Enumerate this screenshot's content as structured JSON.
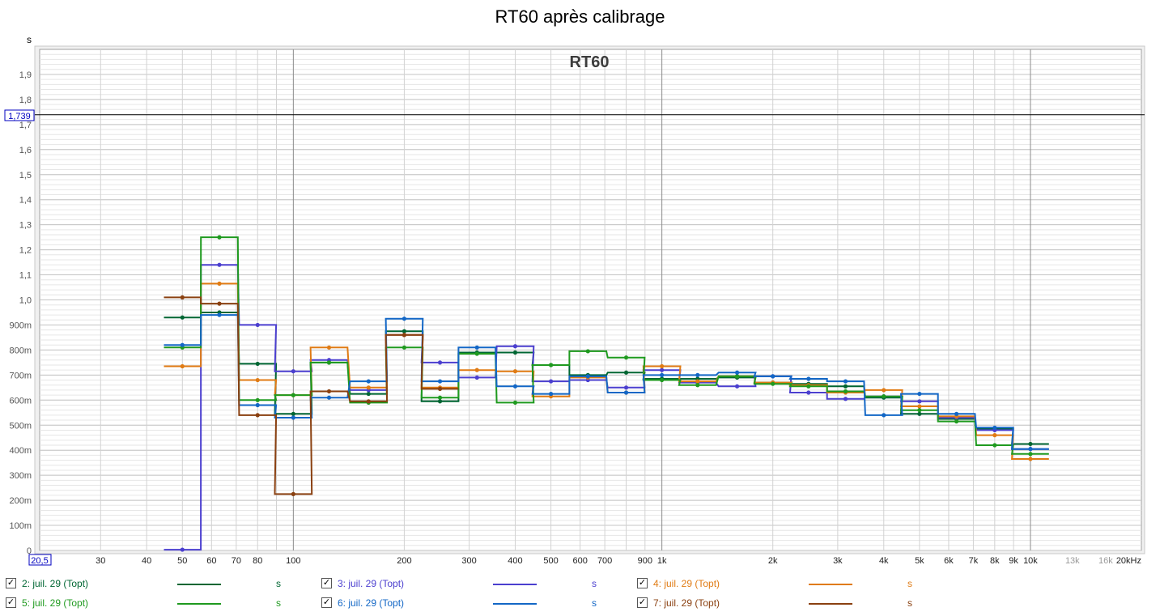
{
  "window": {
    "title": "RT60 après calibrage"
  },
  "chart_data": {
    "type": "line",
    "title": "RT60",
    "ylabel": "s",
    "xlabel": "",
    "x_scale": "log",
    "xlim": [
      20.5,
      20000
    ],
    "ylim": [
      0,
      2.0
    ],
    "grid": true,
    "cursor": {
      "y_value": 1.739,
      "y_label": "1,739",
      "x_label": "20,5"
    },
    "y_ticks": [
      {
        "v": 0,
        "label": "0"
      },
      {
        "v": 0.1,
        "label": "100m"
      },
      {
        "v": 0.2,
        "label": "200m"
      },
      {
        "v": 0.3,
        "label": "300m"
      },
      {
        "v": 0.4,
        "label": "400m"
      },
      {
        "v": 0.5,
        "label": "500m"
      },
      {
        "v": 0.6,
        "label": "600m"
      },
      {
        "v": 0.7,
        "label": "700m"
      },
      {
        "v": 0.8,
        "label": "800m"
      },
      {
        "v": 0.9,
        "label": "900m"
      },
      {
        "v": 1.0,
        "label": "1,0"
      },
      {
        "v": 1.1,
        "label": "1,1"
      },
      {
        "v": 1.2,
        "label": "1,2"
      },
      {
        "v": 1.3,
        "label": "1,3"
      },
      {
        "v": 1.4,
        "label": "1,4"
      },
      {
        "v": 1.5,
        "label": "1,5"
      },
      {
        "v": 1.6,
        "label": "1,6"
      },
      {
        "v": 1.7,
        "label": "1,7"
      },
      {
        "v": 1.8,
        "label": "1,8"
      },
      {
        "v": 1.9,
        "label": "1,9"
      }
    ],
    "x_ticks": [
      {
        "v": 30,
        "label": "30"
      },
      {
        "v": 40,
        "label": "40"
      },
      {
        "v": 50,
        "label": "50"
      },
      {
        "v": 60,
        "label": "60"
      },
      {
        "v": 70,
        "label": "70"
      },
      {
        "v": 80,
        "label": "80"
      },
      {
        "v": 100,
        "label": "100"
      },
      {
        "v": 200,
        "label": "200"
      },
      {
        "v": 300,
        "label": "300"
      },
      {
        "v": 400,
        "label": "400"
      },
      {
        "v": 500,
        "label": "500"
      },
      {
        "v": 600,
        "label": "600"
      },
      {
        "v": 700,
        "label": "700"
      },
      {
        "v": 900,
        "label": "900"
      },
      {
        "v": 1000,
        "label": "1k"
      },
      {
        "v": 2000,
        "label": "2k"
      },
      {
        "v": 3000,
        "label": "3k"
      },
      {
        "v": 4000,
        "label": "4k"
      },
      {
        "v": 5000,
        "label": "5k"
      },
      {
        "v": 6000,
        "label": "6k"
      },
      {
        "v": 7000,
        "label": "7k"
      },
      {
        "v": 8000,
        "label": "8k"
      },
      {
        "v": 9000,
        "label": "9k"
      },
      {
        "v": 10000,
        "label": "10k"
      },
      {
        "v": 13000,
        "label": "13k",
        "muted": true
      },
      {
        "v": 16000,
        "label": "16k",
        "muted": true
      },
      {
        "v": 20000,
        "label": "20kHz"
      }
    ],
    "band_centers": [
      50,
      63,
      80,
      100,
      125,
      160,
      200,
      250,
      315,
      400,
      500,
      630,
      800,
      1000,
      1250,
      1600,
      2000,
      2500,
      3150,
      4000,
      5000,
      6300,
      8000,
      10000
    ],
    "series": [
      {
        "name": "2: juil. 29 (Topt)",
        "unit": "s",
        "color": "#006633",
        "values": [
          0.93,
          0.95,
          0.745,
          0.545,
          0.75,
          0.625,
          0.875,
          0.595,
          0.79,
          0.79,
          0.74,
          0.7,
          0.71,
          0.685,
          0.685,
          0.69,
          0.67,
          0.665,
          0.655,
          0.61,
          0.545,
          0.525,
          0.485,
          0.425
        ]
      },
      {
        "name": "3: juil. 29 (Topt)",
        "unit": "s",
        "color": "#4b3fcf",
        "values": [
          0.003,
          1.14,
          0.9,
          0.715,
          0.76,
          0.64,
          0.86,
          0.75,
          0.69,
          0.815,
          0.675,
          0.68,
          0.65,
          0.72,
          0.67,
          0.655,
          0.695,
          0.63,
          0.605,
          0.615,
          0.595,
          0.53,
          0.48,
          0.405
        ]
      },
      {
        "name": "4: juil. 29 (Topt)",
        "unit": "s",
        "color": "#e07b14",
        "values": [
          0.735,
          1.065,
          0.68,
          0.62,
          0.81,
          0.65,
          0.86,
          0.65,
          0.72,
          0.715,
          0.615,
          0.69,
          0.63,
          0.735,
          0.675,
          0.695,
          0.67,
          0.66,
          0.63,
          0.64,
          0.575,
          0.535,
          0.46,
          0.365
        ]
      },
      {
        "name": "5: juil. 29 (Topt)",
        "unit": "s",
        "color": "#1f9a1f",
        "values": [
          0.81,
          1.25,
          0.6,
          0.62,
          0.75,
          0.59,
          0.81,
          0.61,
          0.785,
          0.59,
          0.74,
          0.795,
          0.77,
          0.68,
          0.66,
          0.695,
          0.665,
          0.655,
          0.635,
          0.615,
          0.56,
          0.515,
          0.42,
          0.385
        ]
      },
      {
        "name": "6: juil. 29 (Topt)",
        "unit": "s",
        "color": "#1367c6",
        "values": [
          0.82,
          0.94,
          0.58,
          0.53,
          0.61,
          0.675,
          0.925,
          0.675,
          0.81,
          0.655,
          0.625,
          0.695,
          0.63,
          0.7,
          0.7,
          0.71,
          0.695,
          0.685,
          0.675,
          0.54,
          0.625,
          0.545,
          0.49,
          0.405
        ]
      },
      {
        "name": "7: juil. 29 (Topt)",
        "unit": "s",
        "color": "#8a4010",
        "values": [
          1.01,
          0.985,
          0.54,
          0.225,
          0.635,
          0.595,
          0.86,
          0.645,
          null,
          null,
          null,
          null,
          null,
          null,
          null,
          null,
          null,
          null,
          null,
          null,
          null,
          null,
          null,
          null
        ]
      }
    ]
  },
  "legend": {
    "checked_glyph": "✓",
    "items": [
      {
        "label": "2: juil. 29 (Topt)",
        "unit": "s",
        "color": "#006633"
      },
      {
        "label": "3: juil. 29 (Topt)",
        "unit": "s",
        "color": "#4b3fcf"
      },
      {
        "label": "4: juil. 29 (Topt)",
        "unit": "s",
        "color": "#e07b14"
      },
      {
        "label": "5: juil. 29 (Topt)",
        "unit": "s",
        "color": "#1f9a1f"
      },
      {
        "label": "6: juil. 29 (Topt)",
        "unit": "s",
        "color": "#1367c6"
      },
      {
        "label": "7: juil. 29 (Topt)",
        "unit": "s",
        "color": "#8a4010"
      }
    ]
  }
}
